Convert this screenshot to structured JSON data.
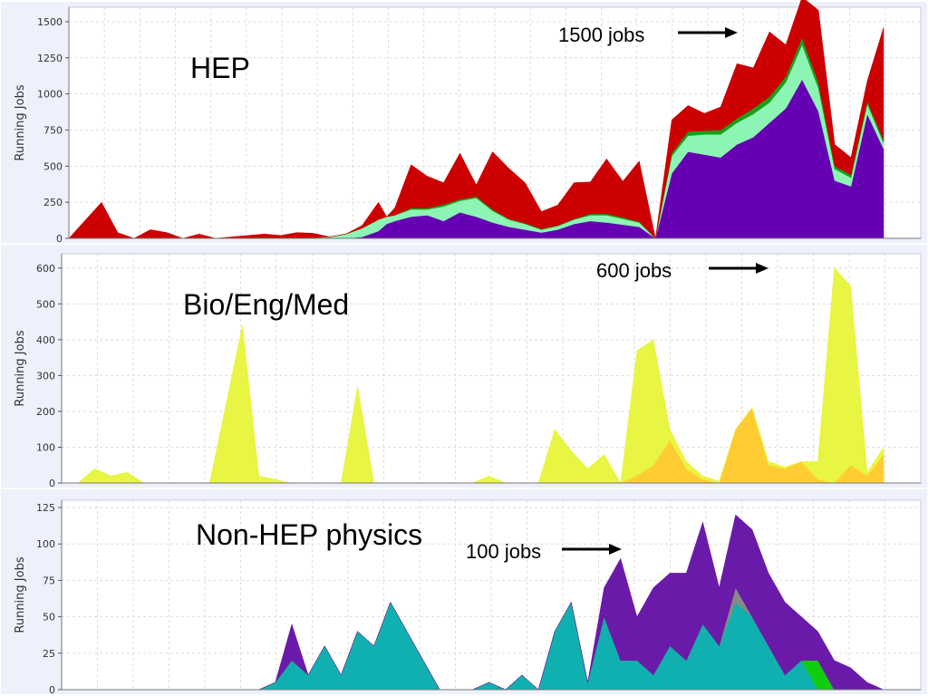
{
  "chart_data": [
    {
      "type": "area",
      "stacked": true,
      "title": "HEP",
      "ylabel": "Running Jobs",
      "ylim": [
        0,
        1600
      ],
      "yticks": [
        0,
        250,
        500,
        750,
        1000,
        1250,
        1500
      ],
      "grid": true,
      "annotation": "1500 jobs",
      "x": [
        0,
        4,
        6,
        8,
        10,
        12,
        14,
        16,
        18,
        22,
        24,
        26,
        28,
        30,
        32,
        34,
        36,
        38,
        39,
        40,
        42,
        44,
        46,
        48,
        50,
        52,
        54,
        56,
        58,
        60,
        62,
        64,
        66,
        68,
        70,
        72,
        74,
        76,
        78,
        80,
        82,
        84,
        86,
        88,
        90,
        92,
        94,
        96,
        98,
        100
      ],
      "series": [
        {
          "name": "",
          "color": "#6600b3",
          "values": [
            0,
            0,
            0,
            0,
            0,
            0,
            0,
            0,
            0,
            0,
            0,
            0,
            0,
            0,
            0,
            0,
            10,
            50,
            100,
            120,
            150,
            160,
            120,
            180,
            150,
            110,
            80,
            60,
            40,
            60,
            100,
            120,
            110,
            95,
            80,
            0,
            450,
            600,
            580,
            560,
            650,
            700,
            800,
            900,
            1100,
            880,
            400,
            360,
            860,
            620
          ]
        },
        {
          "name": "",
          "color": "#8cf5b4",
          "values": [
            0,
            0,
            0,
            0,
            0,
            0,
            0,
            0,
            0,
            0,
            0,
            0,
            0,
            5,
            10,
            30,
            60,
            80,
            50,
            40,
            50,
            40,
            100,
            80,
            130,
            80,
            50,
            40,
            20,
            25,
            30,
            40,
            50,
            40,
            30,
            0,
            120,
            110,
            140,
            160,
            150,
            160,
            140,
            180,
            240,
            160,
            80,
            60,
            70,
            40
          ]
        },
        {
          "name": "",
          "color": "#1a9e1a",
          "values": [
            0,
            0,
            0,
            0,
            0,
            0,
            0,
            0,
            0,
            0,
            0,
            0,
            0,
            0,
            0,
            0,
            0,
            0,
            0,
            0,
            10,
            10,
            15,
            10,
            10,
            10,
            5,
            5,
            5,
            5,
            5,
            10,
            10,
            10,
            5,
            0,
            20,
            30,
            25,
            30,
            30,
            40,
            40,
            40,
            50,
            40,
            20,
            20,
            20,
            20
          ]
        },
        {
          "name": "",
          "color": "#cc0000",
          "values": [
            0,
            250,
            40,
            0,
            60,
            40,
            0,
            30,
            0,
            20,
            30,
            20,
            40,
            30,
            0,
            0,
            20,
            120,
            0,
            50,
            300,
            220,
            150,
            320,
            80,
            400,
            350,
            280,
            120,
            140,
            250,
            220,
            380,
            250,
            420,
            0,
            230,
            180,
            120,
            160,
            380,
            280,
            450,
            220,
            280,
            500,
            150,
            120,
            140,
            780
          ]
        }
      ]
    },
    {
      "type": "area",
      "stacked": true,
      "title": "Bio/Eng/Med",
      "ylabel": "Running Jobs",
      "ylim": [
        0,
        640
      ],
      "yticks": [
        0,
        100,
        200,
        300,
        400,
        500,
        600
      ],
      "grid": true,
      "annotation": "600 jobs",
      "x": [
        0,
        2,
        4,
        6,
        8,
        10,
        12,
        14,
        16,
        18,
        20,
        22,
        24,
        26,
        28,
        30,
        32,
        34,
        36,
        38,
        40,
        42,
        44,
        46,
        48,
        50,
        52,
        54,
        56,
        58,
        60,
        62,
        64,
        66,
        68,
        70,
        72,
        74,
        76,
        78,
        80,
        82,
        84,
        86,
        88,
        90,
        92,
        94,
        96,
        98,
        100
      ],
      "series": [
        {
          "name": "",
          "color": "#ffcc33",
          "values": [
            0,
            0,
            0,
            0,
            0,
            0,
            0,
            0,
            0,
            0,
            0,
            0,
            0,
            0,
            0,
            0,
            0,
            0,
            0,
            0,
            0,
            0,
            0,
            0,
            0,
            0,
            0,
            0,
            0,
            0,
            0,
            0,
            0,
            0,
            0,
            20,
            50,
            120,
            40,
            10,
            0,
            150,
            210,
            50,
            40,
            60,
            10,
            0,
            50,
            20,
            80
          ]
        },
        {
          "name": "",
          "color": "#e8f542",
          "values": [
            0,
            0,
            40,
            20,
            30,
            0,
            0,
            0,
            0,
            0,
            220,
            440,
            20,
            10,
            0,
            0,
            0,
            0,
            270,
            0,
            0,
            0,
            0,
            0,
            0,
            0,
            20,
            0,
            0,
            0,
            150,
            90,
            40,
            80,
            0,
            350,
            350,
            30,
            20,
            10,
            5,
            0,
            0,
            10,
            5,
            0,
            50,
            600,
            500,
            10,
            20
          ]
        }
      ]
    },
    {
      "type": "area",
      "stacked": true,
      "title": "Non-HEP physics",
      "ylabel": "Running Jobs",
      "ylim": [
        0,
        130
      ],
      "yticks": [
        0,
        25,
        50,
        75,
        100,
        125
      ],
      "grid": true,
      "annotation": "100 jobs",
      "x": [
        0,
        12,
        16,
        20,
        22,
        24,
        26,
        28,
        30,
        32,
        34,
        36,
        38,
        40,
        46,
        50,
        52,
        54,
        56,
        58,
        60,
        62,
        64,
        66,
        68,
        70,
        72,
        74,
        76,
        78,
        80,
        82,
        84,
        86,
        88,
        90,
        92,
        94,
        96,
        98,
        100
      ],
      "series": [
        {
          "name": "",
          "color": "#11b0b0",
          "values": [
            0,
            0,
            0,
            0,
            0,
            0,
            5,
            20,
            10,
            30,
            10,
            40,
            30,
            60,
            0,
            0,
            5,
            0,
            10,
            0,
            40,
            60,
            5,
            50,
            20,
            20,
            10,
            30,
            20,
            45,
            30,
            60,
            50,
            30,
            10,
            20,
            0,
            0,
            0,
            0,
            0
          ]
        },
        {
          "name": "",
          "color": "#11cc11",
          "values": [
            0,
            0,
            0,
            0,
            0,
            0,
            0,
            0,
            0,
            0,
            0,
            0,
            0,
            0,
            0,
            0,
            0,
            0,
            0,
            0,
            0,
            0,
            0,
            0,
            0,
            0,
            0,
            0,
            0,
            0,
            0,
            0,
            0,
            0,
            0,
            0,
            20,
            0,
            0,
            0,
            0
          ]
        },
        {
          "name": "",
          "color": "#888888",
          "values": [
            0,
            0,
            0,
            0,
            0,
            0,
            0,
            0,
            0,
            0,
            0,
            0,
            0,
            0,
            0,
            0,
            0,
            0,
            0,
            0,
            0,
            0,
            0,
            0,
            0,
            0,
            0,
            0,
            0,
            0,
            0,
            10,
            0,
            0,
            0,
            0,
            0,
            0,
            0,
            0,
            0
          ]
        },
        {
          "name": "",
          "color": "#6a1aa8",
          "values": [
            0,
            0,
            0,
            0,
            0,
            0,
            0,
            25,
            0,
            0,
            0,
            0,
            0,
            0,
            0,
            0,
            0,
            0,
            0,
            0,
            0,
            0,
            0,
            20,
            70,
            30,
            60,
            50,
            60,
            70,
            40,
            50,
            60,
            50,
            50,
            30,
            20,
            20,
            15,
            5,
            0
          ]
        }
      ]
    }
  ]
}
